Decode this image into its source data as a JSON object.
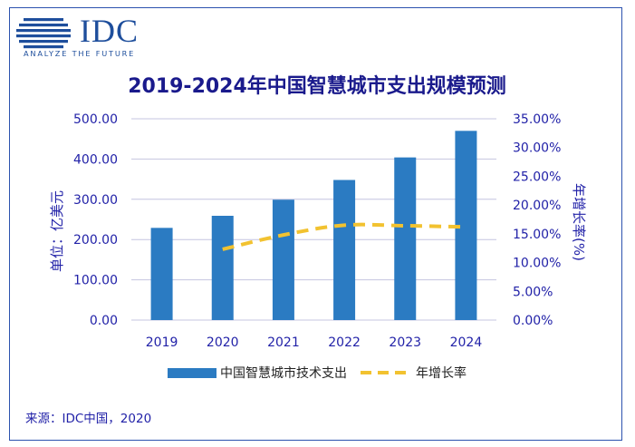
{
  "logo": {
    "text": "IDC",
    "tagline": "ANALYZE THE FUTURE"
  },
  "source": "来源：IDC中国，2020",
  "colors": {
    "bar": "#2B7BC2",
    "line": "#F2C230",
    "grid": "#C4C4E0",
    "text": "#2222A8",
    "title": "#1A1A8C"
  },
  "chart_data": {
    "type": "bar",
    "title": "2019-2024年中国智慧城市支出规模预测",
    "categories": [
      "2019",
      "2020",
      "2021",
      "2022",
      "2023",
      "2024"
    ],
    "series": [
      {
        "name": "中国智慧城市技术支出",
        "type": "bar",
        "axis": "left",
        "values": [
          229,
          259,
          299,
          348,
          404,
          470
        ]
      },
      {
        "name": "年增长率",
        "type": "line",
        "style": "dashed",
        "axis": "right",
        "values": [
          null,
          12.3,
          14.8,
          16.5,
          16.4,
          16.2
        ]
      }
    ],
    "ylabel": "单位：亿美元",
    "y2label": "年增长率(%)",
    "ylim": [
      0,
      500
    ],
    "y2lim": [
      0,
      35
    ],
    "yticks": [
      "0.00",
      "100.00",
      "200.00",
      "300.00",
      "400.00",
      "500.00"
    ],
    "y2ticks": [
      "0.00%",
      "5.00%",
      "10.00%",
      "15.00%",
      "20.00%",
      "25.00%",
      "30.00%",
      "35.00%"
    ],
    "grid": true,
    "legend_position": "bottom"
  }
}
